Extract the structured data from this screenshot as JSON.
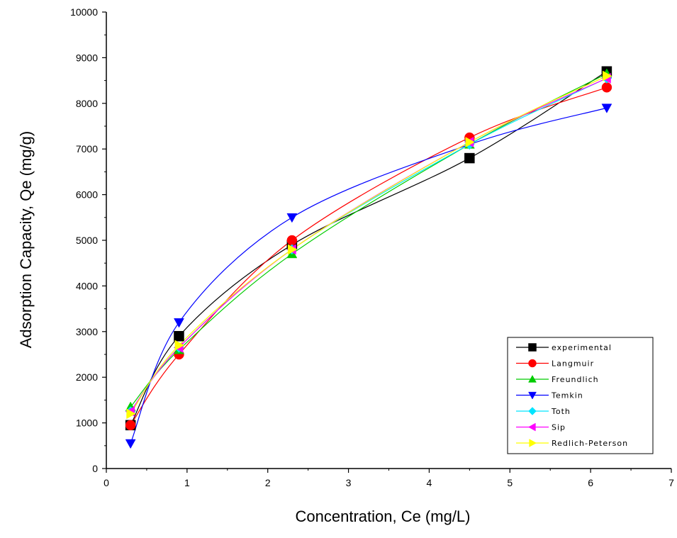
{
  "chart_data": {
    "type": "line",
    "title": "",
    "xlabel": "Concentration, Ce (mg/L)",
    "ylabel": "Adsorption Capacity, Qe (mg/g)",
    "xlim": [
      0,
      7
    ],
    "ylim": [
      0,
      10000
    ],
    "xticks": [
      0,
      1,
      2,
      3,
      4,
      5,
      6,
      7
    ],
    "yticks": [
      0,
      1000,
      2000,
      3000,
      4000,
      5000,
      6000,
      7000,
      8000,
      9000,
      10000
    ],
    "grid": false,
    "legend_position": "bottom-right",
    "x": [
      0.3,
      0.9,
      2.3,
      4.5,
      6.2
    ],
    "series": [
      {
        "name": "experimental",
        "color": "#000000",
        "marker": "square",
        "values": [
          950,
          2900,
          4900,
          6800,
          8700
        ]
      },
      {
        "name": "Langmuir",
        "color": "#ff0000",
        "marker": "circle",
        "values": [
          950,
          2500,
          5000,
          7250,
          8350
        ]
      },
      {
        "name": "Freundlich",
        "color": "#00cc00",
        "marker": "triangle-up",
        "values": [
          1350,
          2600,
          4700,
          7100,
          8650
        ]
      },
      {
        "name": "Temkin",
        "color": "#0000ff",
        "marker": "triangle-down",
        "values": [
          550,
          3200,
          5500,
          7100,
          7900
        ]
      },
      {
        "name": "Toth",
        "color": "#00e5ff",
        "marker": "diamond",
        "values": [
          1250,
          2650,
          4800,
          7100,
          8550
        ]
      },
      {
        "name": "Sip",
        "color": "#ff00ff",
        "marker": "triangle-left",
        "values": [
          1250,
          2650,
          4800,
          7150,
          8550
        ]
      },
      {
        "name": "Redlich-Peterson",
        "color": "#ffff00",
        "marker": "triangle-right",
        "values": [
          1200,
          2700,
          4800,
          7150,
          8600
        ]
      }
    ]
  }
}
